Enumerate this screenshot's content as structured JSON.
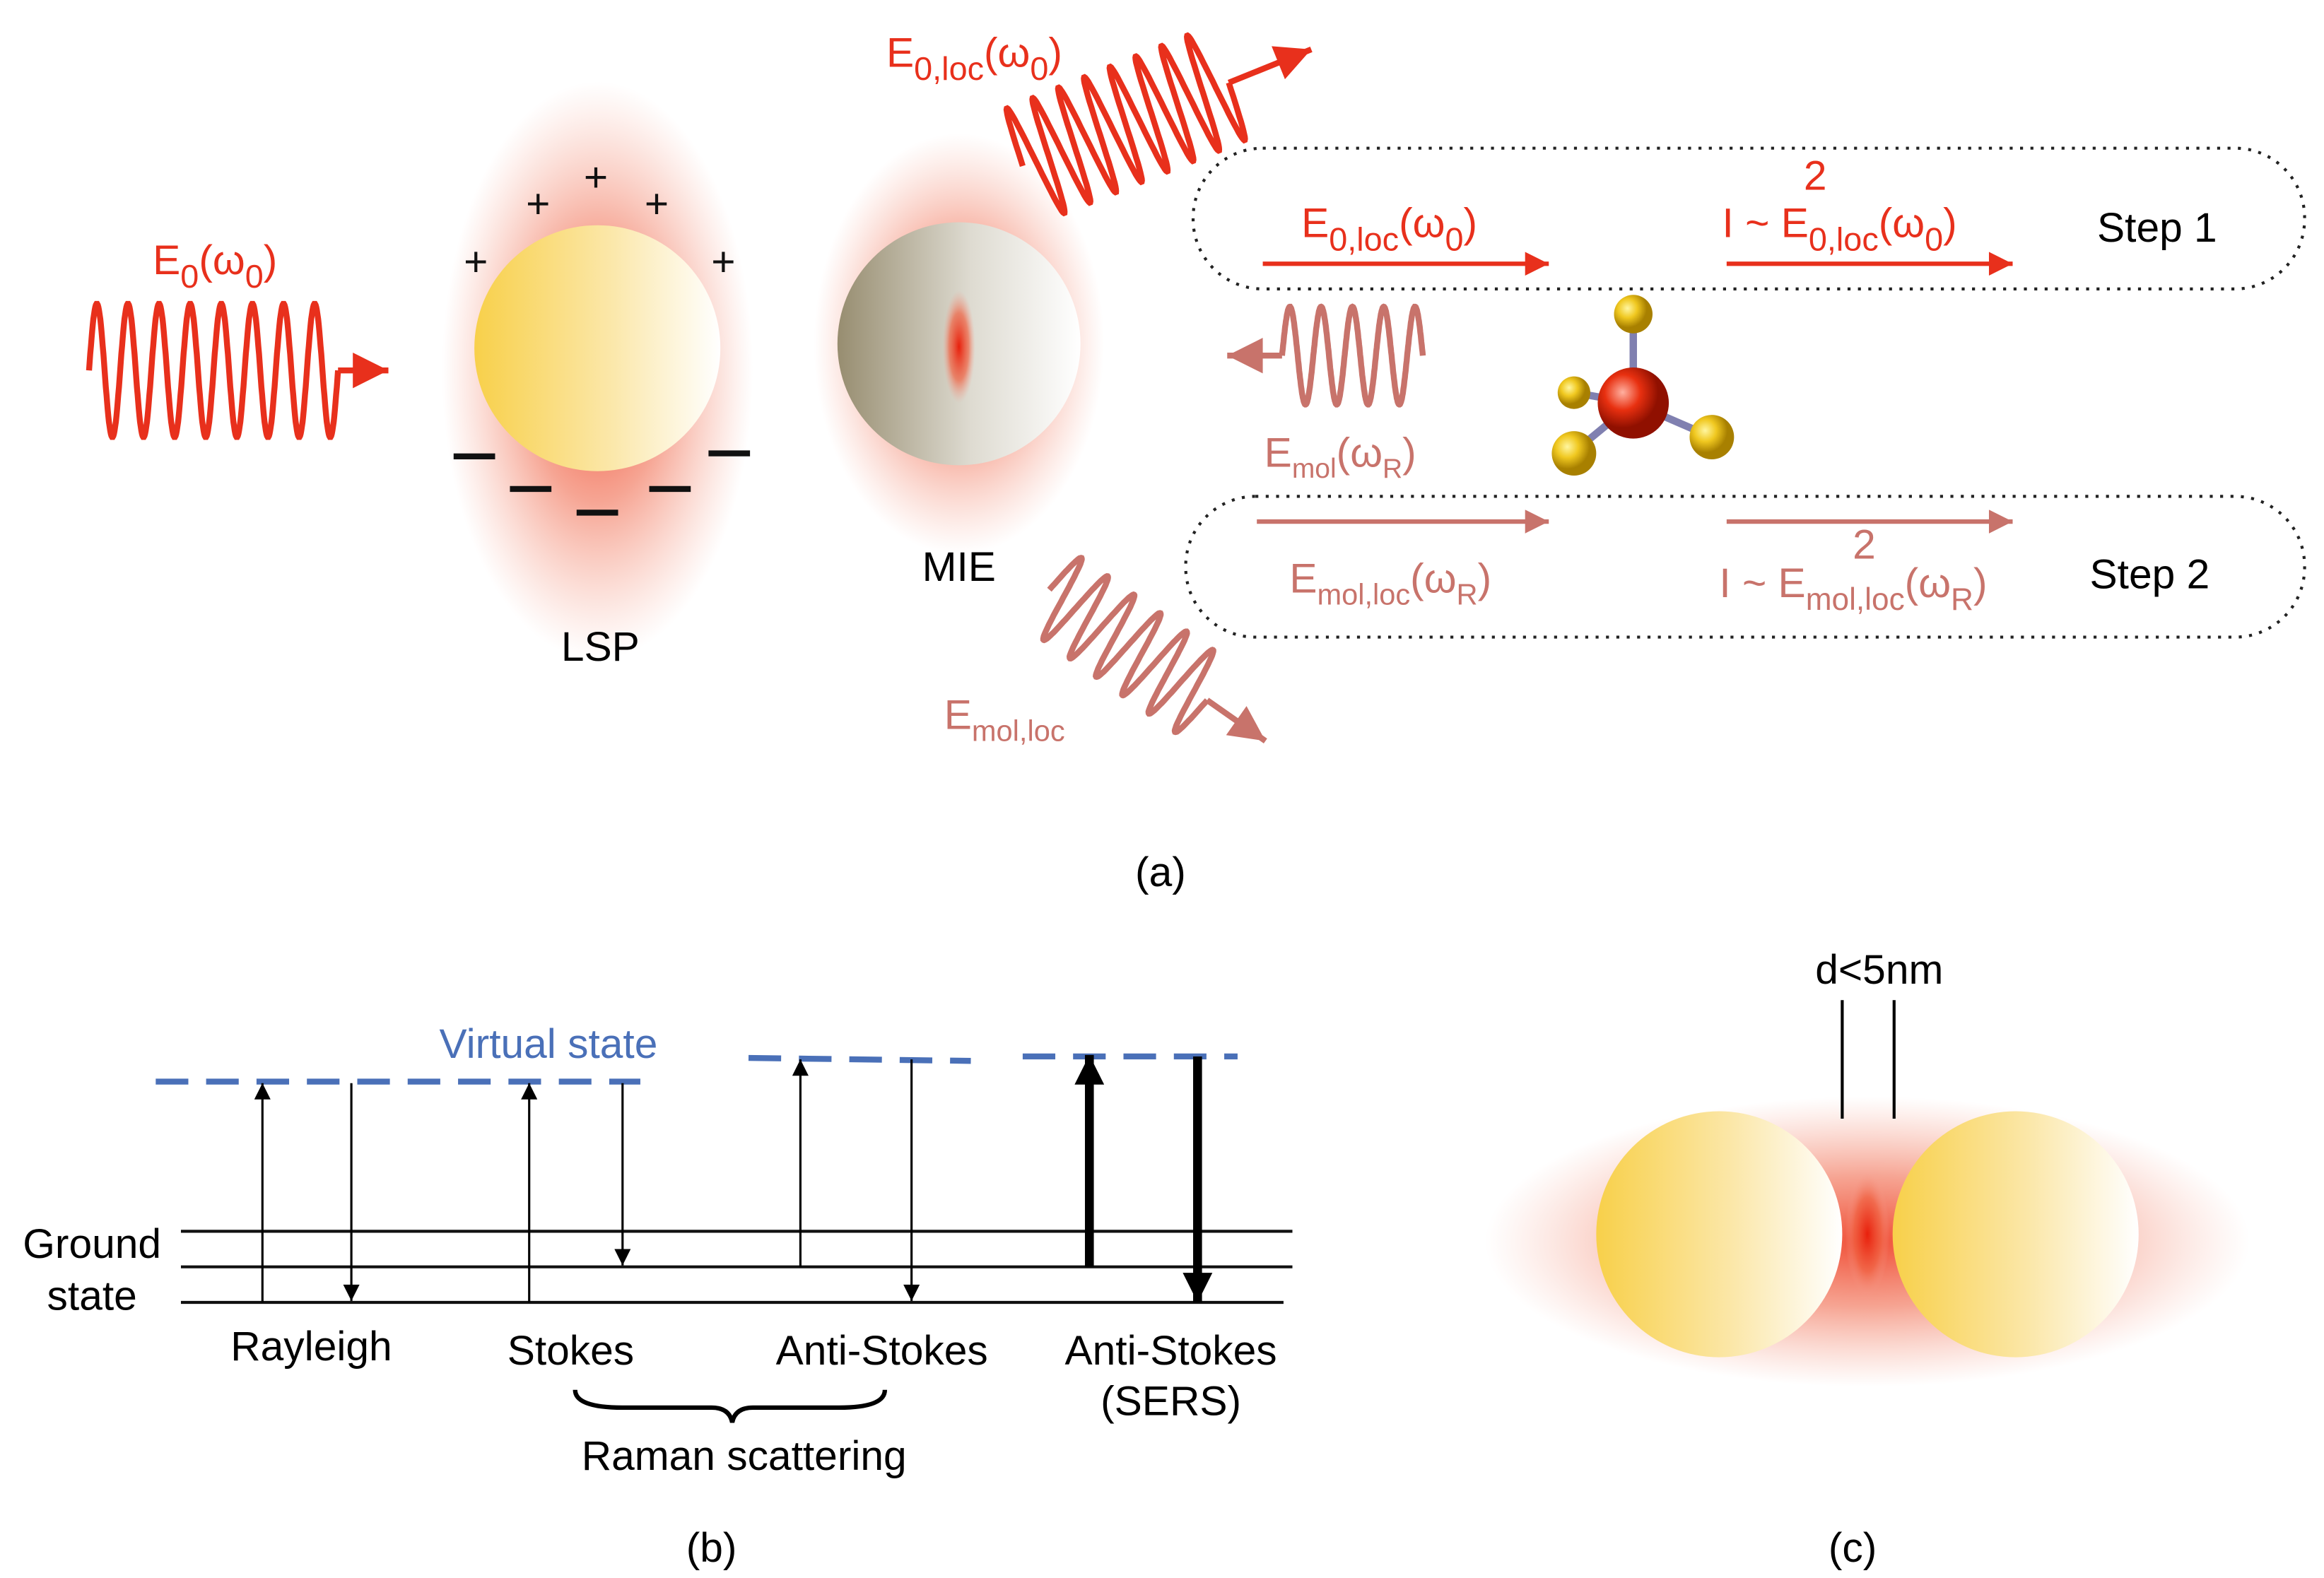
{
  "panel_a": {
    "incident_field": [
      "E",
      "0",
      "(ω",
      "0",
      ")"
    ],
    "local_field": [
      "E",
      "0,loc",
      "(ω",
      "0",
      ")"
    ],
    "plus_sign": "+",
    "lsp_label": "LSP",
    "mie_label": "MIE",
    "step1": {
      "field": [
        "E",
        "0,loc",
        "(ω",
        "0",
        ")"
      ],
      "intensity": [
        "I ~ E",
        "0,loc",
        "(ω",
        "0",
        ")"
      ],
      "intensity_exponent": "2",
      "label": "Step 1"
    },
    "molecular_field": [
      "E",
      "mol",
      "(ω",
      "R",
      ")"
    ],
    "step2": {
      "field": [
        "E",
        "mol,loc",
        "(ω",
        "R",
        ")"
      ],
      "intensity": [
        "I ~ E",
        "mol,loc",
        "(ω",
        "R",
        ")"
      ],
      "intensity_exponent": "2",
      "label": "Step 2"
    },
    "scattered_field": [
      "E",
      "mol,loc"
    ],
    "caption": "(a)"
  },
  "panel_b": {
    "virtual_state": "Virtual state",
    "ground_state": [
      "Ground",
      "state"
    ],
    "rayleigh": "Rayleigh",
    "stokes": "Stokes",
    "anti_stokes": "Anti-Stokes",
    "anti_stokes_sers": [
      "Anti-Stokes",
      "(SERS)"
    ],
    "raman_group": "Raman scattering",
    "caption": "(b)"
  },
  "panel_c": {
    "gap_label": "d<5nm",
    "caption": "(c)"
  }
}
